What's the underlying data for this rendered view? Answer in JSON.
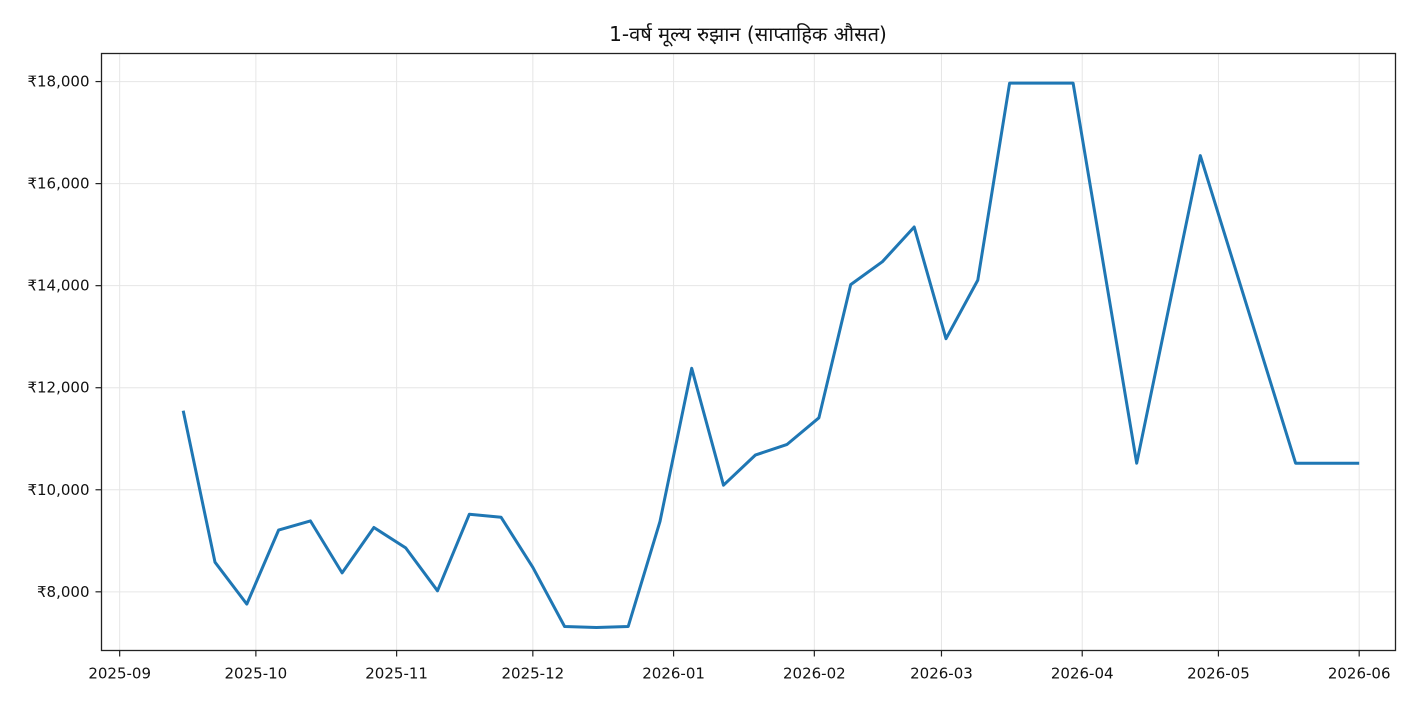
{
  "chart_data": {
    "type": "line",
    "title": "1-वर्ष मूल्य रुझान (साप्ताहिक औसत)",
    "xlabel": "",
    "ylabel": "",
    "grid": true,
    "legend": null,
    "line_color": "#1f77b4",
    "x_ticks": [
      "2025-09",
      "2025-10",
      "2025-11",
      "2025-12",
      "2026-01",
      "2026-02",
      "2026-03",
      "2026-04",
      "2026-05",
      "2026-06"
    ],
    "y_ticks": [
      "₹8,000",
      "₹10,000",
      "₹12,000",
      "₹14,000",
      "₹16,000",
      "₹18,000"
    ],
    "y_tick_values": [
      8000,
      10000,
      12000,
      14000,
      16000,
      18000
    ],
    "ylim": [
      6850,
      18550
    ],
    "xlim": [
      "2025-08-28",
      "2026-06-09"
    ],
    "series": [
      {
        "name": "साप्ताहिक औसत",
        "x": [
          "2025-09-15",
          "2025-09-22",
          "2025-09-29",
          "2025-10-06",
          "2025-10-13",
          "2025-10-20",
          "2025-10-27",
          "2025-11-03",
          "2025-11-10",
          "2025-11-17",
          "2025-11-24",
          "2025-12-01",
          "2025-12-08",
          "2025-12-15",
          "2025-12-22",
          "2025-12-29",
          "2026-01-05",
          "2026-01-12",
          "2026-01-19",
          "2026-01-26",
          "2026-02-02",
          "2026-02-09",
          "2026-02-16",
          "2026-02-23",
          "2026-03-02",
          "2026-03-09",
          "2026-03-16",
          "2026-03-23",
          "2026-03-30",
          "2026-04-13",
          "2026-04-27",
          "2026-05-18",
          "2026-05-25",
          "2026-06-01"
        ],
        "values": [
          11550,
          8580,
          7760,
          9210,
          9390,
          8370,
          9260,
          8860,
          8020,
          9520,
          9460,
          8480,
          7320,
          7300,
          7320,
          9380,
          12380,
          10090,
          10680,
          10890,
          11410,
          14020,
          14470,
          15150,
          12960,
          14110,
          17970,
          17970,
          17970,
          10520,
          16550,
          10520,
          10520,
          10520
        ]
      }
    ]
  }
}
